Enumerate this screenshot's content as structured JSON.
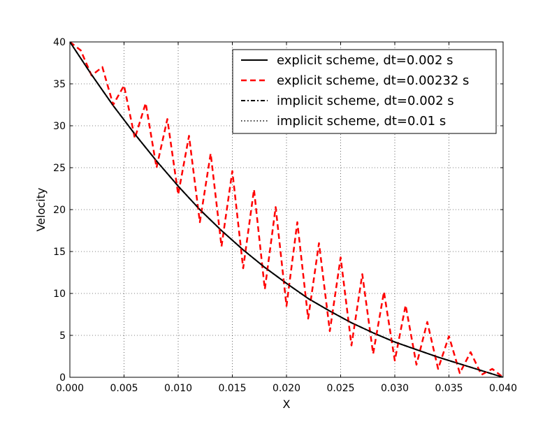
{
  "chart_data": {
    "type": "line",
    "title": "",
    "xlabel": "X",
    "ylabel": "Velocity",
    "xlim": [
      0.0,
      0.04
    ],
    "ylim": [
      0,
      40
    ],
    "x_ticks": [
      0.0,
      0.005,
      0.01,
      0.015,
      0.02,
      0.025,
      0.03,
      0.035,
      0.04
    ],
    "x_tick_labels": [
      "0.000",
      "0.005",
      "0.010",
      "0.015",
      "0.020",
      "0.025",
      "0.030",
      "0.035",
      "0.040"
    ],
    "y_ticks": [
      0,
      5,
      10,
      15,
      20,
      25,
      30,
      35,
      40
    ],
    "y_tick_labels": [
      "0",
      "5",
      "10",
      "15",
      "20",
      "25",
      "30",
      "35",
      "40"
    ],
    "grid": true,
    "legend_position": "top-right",
    "series": [
      {
        "name": "explicit scheme, dt=0.002 s",
        "color": "#000000",
        "style": "solid",
        "x": [
          0.0,
          0.002,
          0.004,
          0.006,
          0.008,
          0.01,
          0.012,
          0.014,
          0.016,
          0.018,
          0.02,
          0.022,
          0.024,
          0.026,
          0.028,
          0.03,
          0.032,
          0.034,
          0.036,
          0.038,
          0.04
        ],
        "y": [
          40.0,
          36.1,
          32.4,
          29.0,
          25.8,
          22.8,
          20.0,
          17.5,
          15.2,
          13.1,
          11.2,
          9.4,
          7.9,
          6.5,
          5.3,
          4.2,
          3.3,
          2.4,
          1.6,
          0.8,
          0.0
        ]
      },
      {
        "name": "explicit scheme, dt=0.00232 s",
        "color": "#ff0000",
        "style": "dashed",
        "x": [
          0.0,
          0.001,
          0.002,
          0.003,
          0.004,
          0.005,
          0.006,
          0.007,
          0.008,
          0.009,
          0.01,
          0.011,
          0.012,
          0.013,
          0.014,
          0.015,
          0.016,
          0.017,
          0.018,
          0.019,
          0.02,
          0.021,
          0.022,
          0.023,
          0.024,
          0.025,
          0.026,
          0.027,
          0.028,
          0.029,
          0.03,
          0.031,
          0.032,
          0.033,
          0.034,
          0.035,
          0.036,
          0.037,
          0.038,
          0.039,
          0.04
        ],
        "y": [
          40.0,
          39.0,
          36.0,
          37.0,
          32.5,
          34.8,
          28.5,
          32.7,
          25.0,
          30.8,
          21.8,
          28.8,
          18.5,
          26.7,
          15.6,
          24.6,
          13.0,
          22.4,
          10.5,
          20.3,
          8.5,
          18.5,
          7.0,
          16.0,
          5.5,
          14.3,
          3.8,
          12.3,
          2.8,
          10.2,
          2.0,
          8.6,
          1.5,
          6.6,
          1.0,
          4.9,
          0.5,
          3.0,
          0.3,
          1.0,
          0.0
        ]
      },
      {
        "name": "implicit scheme, dt=0.002 s",
        "color": "#000000",
        "style": "dashdot",
        "x": [
          0.0,
          0.002,
          0.004,
          0.006,
          0.008,
          0.01,
          0.012,
          0.014,
          0.016,
          0.018,
          0.02,
          0.022,
          0.024,
          0.026,
          0.028,
          0.03,
          0.032,
          0.034,
          0.036,
          0.038,
          0.04
        ],
        "y": [
          40.0,
          36.1,
          32.4,
          29.0,
          25.8,
          22.8,
          20.0,
          17.5,
          15.2,
          13.1,
          11.2,
          9.4,
          7.9,
          6.5,
          5.3,
          4.2,
          3.3,
          2.4,
          1.6,
          0.8,
          0.0
        ]
      },
      {
        "name": "implicit scheme, dt=0.01 s",
        "color": "#000000",
        "style": "dotted",
        "x": [
          0.0,
          0.002,
          0.004,
          0.006,
          0.008,
          0.01,
          0.012,
          0.014,
          0.016,
          0.018,
          0.02,
          0.022,
          0.024,
          0.026,
          0.028,
          0.03,
          0.032,
          0.034,
          0.036,
          0.038,
          0.04
        ],
        "y": [
          40.0,
          36.1,
          32.4,
          29.0,
          25.8,
          22.8,
          20.0,
          17.5,
          15.2,
          13.1,
          11.2,
          9.4,
          7.9,
          6.5,
          5.3,
          4.2,
          3.3,
          2.4,
          1.6,
          0.8,
          0.0
        ]
      }
    ]
  }
}
